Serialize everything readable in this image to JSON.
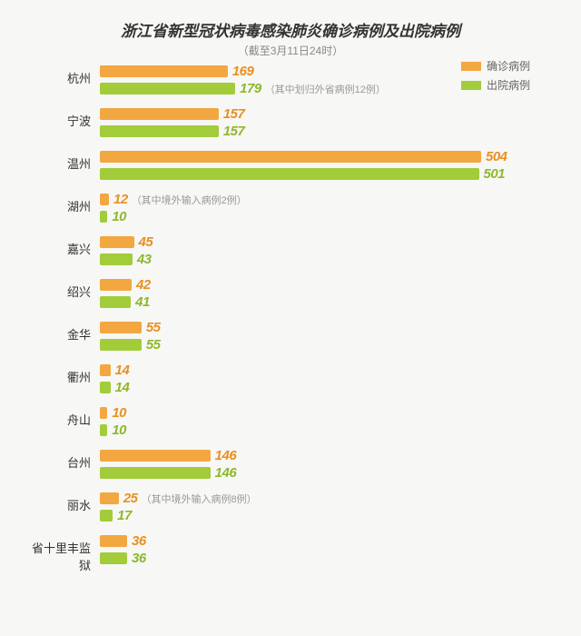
{
  "chart": {
    "type": "bar",
    "title": "浙江省新型冠状病毒感染肺炎确诊病例及出院病例",
    "title_fontsize": 17,
    "subtitle": "（截至3月11日24时）",
    "subtitle_fontsize": 12,
    "background_color": "#f7f7f5",
    "max_value": 504,
    "bar_area_width": 420,
    "confirmed_color": "#f2a741",
    "discharged_color": "#a2cc3a",
    "value_confirmed_color": "#e89020",
    "value_discharged_color": "#8fb82c",
    "city_label_color": "#333333",
    "note_color": "#999999",
    "legend": {
      "confirmed": "确诊病例",
      "discharged": "出院病例"
    },
    "cities": [
      {
        "name": "杭州",
        "confirmed": 169,
        "discharged": 179,
        "discharged_note": "（其中划归外省病例12例）"
      },
      {
        "name": "宁波",
        "confirmed": 157,
        "discharged": 157
      },
      {
        "name": "温州",
        "confirmed": 504,
        "discharged": 501
      },
      {
        "name": "湖州",
        "confirmed": 12,
        "discharged": 10,
        "confirmed_note": "（其中境外输入病例2例）"
      },
      {
        "name": "嘉兴",
        "confirmed": 45,
        "discharged": 43
      },
      {
        "name": "绍兴",
        "confirmed": 42,
        "discharged": 41
      },
      {
        "name": "金华",
        "confirmed": 55,
        "discharged": 55
      },
      {
        "name": "衢州",
        "confirmed": 14,
        "discharged": 14
      },
      {
        "name": "舟山",
        "confirmed": 10,
        "discharged": 10
      },
      {
        "name": "台州",
        "confirmed": 146,
        "discharged": 146
      },
      {
        "name": "丽水",
        "confirmed": 25,
        "discharged": 17,
        "confirmed_note": "（其中境外输入病例8例）"
      },
      {
        "name": "省十里丰监狱",
        "confirmed": 36,
        "discharged": 36
      }
    ]
  }
}
